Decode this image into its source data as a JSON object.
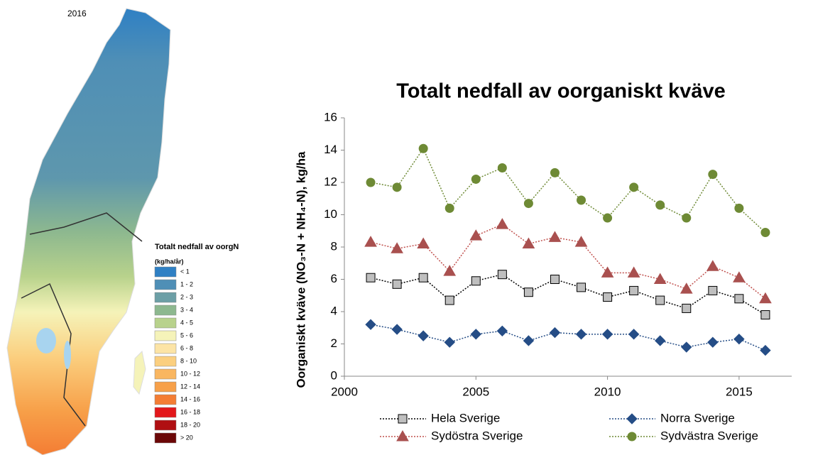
{
  "map": {
    "year": "2016",
    "legend_title": "Totalt nedfall av oorgN",
    "legend_unit": "(kg/ha/år)",
    "legend": [
      {
        "label": "< 1",
        "color": "#2f80c4"
      },
      {
        "label": "1 - 2",
        "color": "#4f8fb6"
      },
      {
        "label": "2 - 3",
        "color": "#6c9fa6"
      },
      {
        "label": "3 - 4",
        "color": "#8db88f"
      },
      {
        "label": "4 - 5",
        "color": "#b8d28c"
      },
      {
        "label": "5 - 6",
        "color": "#f5f3b9"
      },
      {
        "label": "6 - 8",
        "color": "#fce4a6"
      },
      {
        "label": "8 - 10",
        "color": "#fbcf7f"
      },
      {
        "label": "10 - 12",
        "color": "#f9b660"
      },
      {
        "label": "12 - 14",
        "color": "#f7a049"
      },
      {
        "label": "14 - 16",
        "color": "#f47d34"
      },
      {
        "label": "16 - 18",
        "color": "#e3171b"
      },
      {
        "label": "18 - 20",
        "color": "#b00f12"
      },
      {
        "label": "> 20",
        "color": "#6b0707"
      }
    ]
  },
  "chart_data": {
    "type": "line",
    "title": "Totalt nedfall av oorganiskt kväve",
    "y_label": "Oorganiskt kväve (NO₃-N + NH₄-N),  kg/ha",
    "x": [
      2001,
      2002,
      2003,
      2004,
      2005,
      2006,
      2007,
      2008,
      2009,
      2010,
      2011,
      2012,
      2013,
      2014,
      2015,
      2016
    ],
    "series": [
      {
        "name": "Hela Sverige",
        "color": "#bfbfbf",
        "line_color": "#000000",
        "marker": "square",
        "values": [
          6.1,
          5.7,
          6.1,
          4.7,
          5.9,
          6.3,
          5.2,
          6.0,
          5.5,
          4.9,
          5.3,
          4.7,
          4.2,
          5.3,
          4.8,
          3.8
        ]
      },
      {
        "name": "Norra Sverige",
        "color": "#254d86",
        "line_color": "#254d86",
        "marker": "diamond",
        "values": [
          3.2,
          2.9,
          2.5,
          2.1,
          2.6,
          2.8,
          2.2,
          2.7,
          2.6,
          2.6,
          2.6,
          2.2,
          1.8,
          2.1,
          2.3,
          1.6
        ]
      },
      {
        "name": "Sydöstra Sverige",
        "color": "#a9504f",
        "line_color": "#c0504d",
        "marker": "triangle",
        "values": [
          8.3,
          7.9,
          8.2,
          6.5,
          8.7,
          9.4,
          8.2,
          8.6,
          8.3,
          6.4,
          6.4,
          6.0,
          5.4,
          6.8,
          6.1,
          4.8
        ]
      },
      {
        "name": "Sydvästra Sverige",
        "color": "#6e8a35",
        "line_color": "#6e8a35",
        "marker": "circle",
        "values": [
          12.0,
          11.7,
          14.1,
          10.4,
          12.2,
          12.9,
          10.7,
          12.6,
          10.9,
          9.8,
          11.7,
          10.6,
          9.8,
          12.5,
          10.4,
          8.9
        ]
      }
    ],
    "xlim": [
      2000,
      2017
    ],
    "xticks": [
      2000,
      2005,
      2010,
      2015
    ],
    "ylim": [
      0,
      16
    ],
    "yticks": [
      0,
      2,
      4,
      6,
      8,
      10,
      12,
      14,
      16
    ],
    "grid": false
  }
}
